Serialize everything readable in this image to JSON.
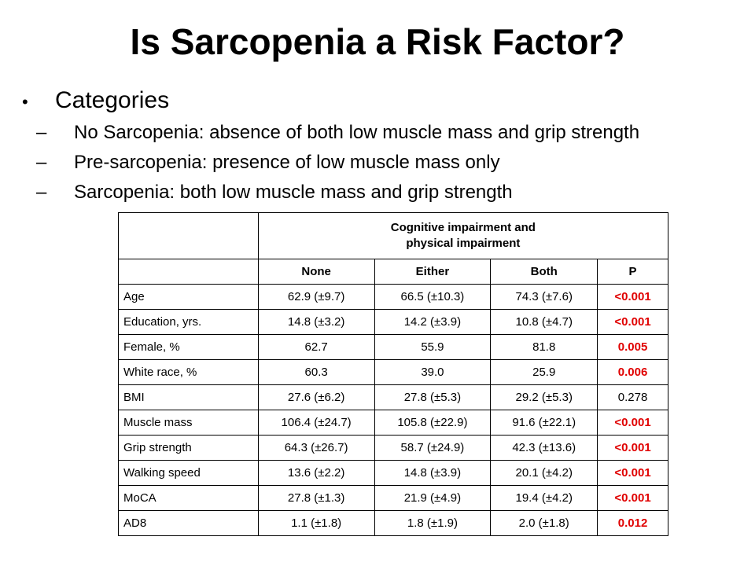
{
  "title": "Is Sarcopenia a Risk Factor?",
  "bullet": "Categories",
  "subbullets": [
    "No Sarcopenia: absence of both low muscle mass and grip strength",
    "Pre-sarcopenia: presence of low muscle mass only",
    "Sarcopenia: both low muscle mass and grip strength"
  ],
  "table": {
    "group_header_line1": "Cognitive impairment and",
    "group_header_line2": "physical impairment",
    "columns": [
      "None",
      "Either",
      "Both",
      "P"
    ],
    "rows": [
      {
        "label": "Age",
        "none": "62.9 (±9.7)",
        "either": "66.5 (±10.3)",
        "both": "74.3 (±7.6)",
        "p": "<0.001"
      },
      {
        "label": "Education, yrs.",
        "none": "14.8 (±3.2)",
        "either": "14.2 (±3.9)",
        "both": "10.8 (±4.7)",
        "p": "<0.001"
      },
      {
        "label": "Female, %",
        "none": "62.7",
        "either": "55.9",
        "both": "81.8",
        "p": "0.005"
      },
      {
        "label": "White race, %",
        "none": "60.3",
        "either": "39.0",
        "both": "25.9",
        "p": "0.006"
      },
      {
        "label": "BMI",
        "none": "27.6 (±6.2)",
        "either": "27.8 (±5.3)",
        "both": "29.2 (±5.3)",
        "p": "0.278"
      },
      {
        "label": "Muscle mass",
        "none": "106.4 (±24.7)",
        "either": "105.8 (±22.9)",
        "both": "91.6 (±22.1)",
        "p": "<0.001"
      },
      {
        "label": "Grip strength",
        "none": "64.3 (±26.7)",
        "either": "58.7 (±24.9)",
        "both": "42.3 (±13.6)",
        "p": "<0.001"
      },
      {
        "label": "Walking speed",
        "none": "13.6 (±2.2)",
        "either": "14.8 (±3.9)",
        "both": "20.1 (±4.2)",
        "p": "<0.001"
      },
      {
        "label": "MoCA",
        "none": "27.8 (±1.3)",
        "either": "21.9 (±4.9)",
        "both": "19.4 (±4.2)",
        "p": "<0.001"
      },
      {
        "label": "AD8",
        "none": "1.1 (±1.8)",
        "either": "1.8 (±1.9)",
        "both": "2.0 (±1.8)",
        "p": "0.012"
      }
    ],
    "significant_color": "#e00000"
  }
}
